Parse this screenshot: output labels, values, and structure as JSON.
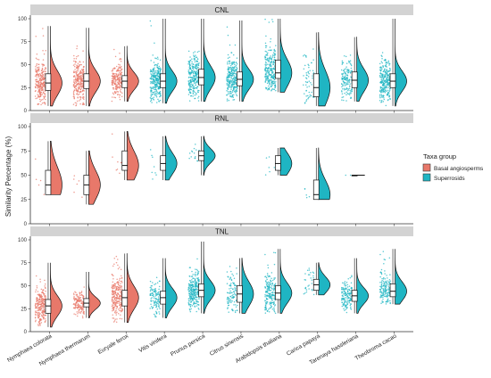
{
  "chart_data": {
    "type": "raincloud",
    "ylabel": "Similarity Percentage (%)",
    "categories": [
      "Nymphaea colorata",
      "Nymphaea thermarum",
      "Euryale ferox",
      "Vitis vinifera",
      "Prunus persica",
      "Citrus sinensis",
      "Arabidopsis thaliana",
      "Carica papaya",
      "Tarenaya hassleriana",
      "Theobroma cacao"
    ],
    "category_groups": [
      "Basal angiosperms",
      "Basal angiosperms",
      "Basal angiosperms",
      "Superrosids",
      "Superrosids",
      "Superrosids",
      "Superrosids",
      "Superrosids",
      "Superrosids",
      "Superrosids"
    ],
    "yticks": [
      0,
      25,
      50,
      75,
      100
    ],
    "ylim": [
      0,
      100
    ],
    "legend": {
      "title": "Taxa group",
      "position": "right",
      "entries": [
        {
          "label": "Basal angiosperms",
          "color": "#E8786A"
        },
        {
          "label": "Superrosids",
          "color": "#1FB5C3"
        }
      ]
    },
    "panels": [
      {
        "label": "CNL",
        "stats": [
          {
            "min": 5,
            "q1": 22,
            "median": 30,
            "q3": 40,
            "max": 92,
            "n": 400
          },
          {
            "min": 5,
            "q1": 24,
            "median": 32,
            "q3": 40,
            "max": 90,
            "n": 350
          },
          {
            "min": 10,
            "q1": 25,
            "median": 32,
            "q3": 38,
            "max": 70,
            "n": 200
          },
          {
            "min": 8,
            "q1": 25,
            "median": 32,
            "q3": 40,
            "max": 100,
            "n": 500
          },
          {
            "min": 10,
            "q1": 28,
            "median": 36,
            "q3": 45,
            "max": 100,
            "n": 600
          },
          {
            "min": 10,
            "q1": 27,
            "median": 34,
            "q3": 42,
            "max": 98,
            "n": 300
          },
          {
            "min": 20,
            "q1": 35,
            "median": 41,
            "q3": 55,
            "max": 100,
            "n": 250
          },
          {
            "min": 5,
            "q1": 15,
            "median": 25,
            "q3": 40,
            "max": 85,
            "n": 60
          },
          {
            "min": 10,
            "q1": 25,
            "median": 33,
            "q3": 42,
            "max": 80,
            "n": 150
          },
          {
            "min": 5,
            "q1": 25,
            "median": 32,
            "q3": 40,
            "max": 100,
            "n": 600
          }
        ]
      },
      {
        "label": "RNL",
        "stats": [
          {
            "min": 30,
            "q1": 30,
            "median": 40,
            "q3": 55,
            "max": 85,
            "n": 6
          },
          {
            "min": 20,
            "q1": 30,
            "median": 40,
            "q3": 50,
            "max": 75,
            "n": 6
          },
          {
            "min": 45,
            "q1": 55,
            "median": 60,
            "q3": 75,
            "max": 95,
            "n": 8
          },
          {
            "min": 45,
            "q1": 55,
            "median": 62,
            "q3": 70,
            "max": 90,
            "n": 8
          },
          {
            "min": 50,
            "q1": 65,
            "median": 70,
            "q3": 75,
            "max": 90,
            "n": 15
          },
          null,
          {
            "min": 50,
            "q1": 55,
            "median": 62,
            "q3": 70,
            "max": 78,
            "n": 6
          },
          {
            "min": 25,
            "q1": 25,
            "median": 30,
            "q3": 45,
            "max": 78,
            "n": 5
          },
          {
            "min": 50,
            "q1": 50,
            "median": 50,
            "q3": 50,
            "max": 50,
            "n": 2
          },
          null
        ]
      },
      {
        "label": "TNL",
        "stats": [
          {
            "min": 5,
            "q1": 20,
            "median": 28,
            "q3": 35,
            "max": 75,
            "n": 250
          },
          {
            "min": 15,
            "q1": 27,
            "median": 31,
            "q3": 36,
            "max": 65,
            "n": 150
          },
          {
            "min": 10,
            "q1": 28,
            "median": 37,
            "q3": 45,
            "max": 85,
            "n": 250
          },
          {
            "min": 15,
            "q1": 30,
            "median": 37,
            "q3": 44,
            "max": 80,
            "n": 120
          },
          {
            "min": 20,
            "q1": 38,
            "median": 45,
            "q3": 52,
            "max": 98,
            "n": 300
          },
          {
            "min": 20,
            "q1": 32,
            "median": 41,
            "q3": 50,
            "max": 80,
            "n": 100
          },
          {
            "min": 20,
            "q1": 35,
            "median": 42,
            "q3": 50,
            "max": 90,
            "n": 200
          },
          {
            "min": 40,
            "q1": 45,
            "median": 51,
            "q3": 57,
            "max": 75,
            "n": 30
          },
          {
            "min": 20,
            "q1": 33,
            "median": 39,
            "q3": 45,
            "max": 80,
            "n": 150
          },
          {
            "min": 30,
            "q1": 38,
            "median": 44,
            "q3": 52,
            "max": 90,
            "n": 150
          }
        ]
      }
    ]
  }
}
